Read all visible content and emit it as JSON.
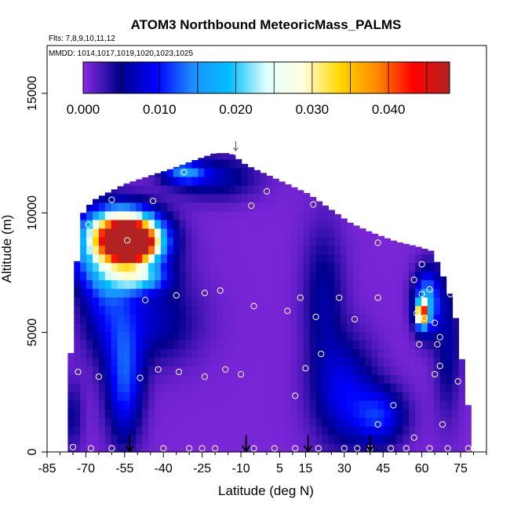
{
  "chart_data": {
    "type": "heatmap",
    "title": "ATOM3 Northbound MeteoricMass_PALMS",
    "subtitle_flights": "Flts: 7,8,9,10,11,12",
    "subtitle_dates": "MMDD: 1014,1017,1019,1020,1023,1025",
    "xlabel": "Latitude (deg N)",
    "ylabel": "Altitude (m)",
    "xlim": [
      -85,
      85
    ],
    "ylim": [
      0,
      17000
    ],
    "x_ticks": [
      -85,
      -70,
      -55,
      -40,
      -25,
      -10,
      5,
      15,
      30,
      45,
      60,
      75
    ],
    "y_ticks": [
      0,
      5000,
      10000,
      15000
    ],
    "colorbar": {
      "range": [
        0,
        0.048
      ],
      "tick_values": [
        0.0,
        0.01,
        0.02,
        0.03,
        0.04
      ],
      "tick_labels": [
        "0.000",
        "0.010",
        "0.020",
        "0.030",
        "0.040"
      ],
      "colors": [
        "#8A2BE2",
        "#00008B",
        "#0000FF",
        "#1E90FF",
        "#00BFFF",
        "#E0FFFF",
        "#FFFFE0",
        "#FFD700",
        "#FF8C00",
        "#FF0000",
        "#B22222"
      ]
    },
    "envelope": [
      [
        -76,
        0,
        3800
      ],
      [
        -74,
        0,
        7200
      ],
      [
        -72,
        0,
        9800
      ],
      [
        -70,
        0,
        10200
      ],
      [
        -66,
        0,
        10600
      ],
      [
        -55,
        0,
        11200
      ],
      [
        -44,
        0,
        11600
      ],
      [
        -38,
        0,
        11800
      ],
      [
        -28,
        0,
        12200
      ],
      [
        -20,
        0,
        12500
      ],
      [
        -14,
        0,
        12500
      ],
      [
        -8,
        0,
        12000
      ],
      [
        0,
        0,
        11600
      ],
      [
        8,
        0,
        11200
      ],
      [
        16,
        0,
        10800
      ],
      [
        24,
        0,
        10200
      ],
      [
        32,
        0,
        9600
      ],
      [
        40,
        0,
        9200
      ],
      [
        50,
        0,
        8800
      ],
      [
        58,
        0,
        8600
      ],
      [
        64,
        0,
        8400
      ],
      [
        68,
        0,
        7400
      ],
      [
        72,
        0,
        6200
      ],
      [
        74,
        0,
        5000
      ],
      [
        76,
        0,
        3400
      ],
      [
        78,
        0,
        1800
      ],
      [
        80,
        0,
        300
      ]
    ],
    "features": [
      {
        "lat": -52,
        "alt": 8700,
        "dlat": 9,
        "dalt": 700,
        "value": 0.044
      },
      {
        "lat": -55,
        "alt": 9200,
        "dlat": 12,
        "dalt": 900,
        "value": 0.032
      },
      {
        "lat": -58,
        "alt": 8500,
        "dlat": 17,
        "dalt": 1500,
        "value": 0.02
      },
      {
        "lat": -50,
        "alt": 7300,
        "dlat": 10,
        "dalt": 500,
        "value": 0.014
      },
      {
        "lat": -32,
        "alt": 11700,
        "dlat": 8,
        "dalt": 450,
        "value": 0.012
      },
      {
        "lat": 60,
        "alt": 5800,
        "dlat": 2.2,
        "dalt": 500,
        "value": 0.036
      },
      {
        "lat": 62,
        "alt": 6300,
        "dlat": 5,
        "dalt": 1300,
        "value": 0.016
      },
      {
        "lat": -55,
        "alt": 3000,
        "dlat": 7,
        "dalt": 2500,
        "value": 0.011
      },
      {
        "lat": -63,
        "alt": 6800,
        "dlat": 9,
        "dalt": 2500,
        "value": 0.007
      },
      {
        "lat": -45,
        "alt": 5500,
        "dlat": 18,
        "dalt": 1800,
        "value": 0.006
      },
      {
        "lat": -20,
        "alt": 11500,
        "dlat": 16,
        "dalt": 900,
        "value": 0.006
      },
      {
        "lat": 30,
        "alt": 2500,
        "dlat": 12,
        "dalt": 2200,
        "value": 0.008
      },
      {
        "lat": 44,
        "alt": 1500,
        "dlat": 10,
        "dalt": 1200,
        "value": 0.009
      },
      {
        "lat": 22,
        "alt": 6500,
        "dlat": 8,
        "dalt": 3000,
        "value": 0.005
      },
      {
        "lat": 70,
        "alt": 4500,
        "dlat": 5,
        "dalt": 3000,
        "value": 0.005
      },
      {
        "lat": -75,
        "alt": 1500,
        "dlat": 4,
        "dalt": 1500,
        "value": 0.004
      }
    ],
    "samples": [
      [
        -60,
        10550
      ],
      [
        -69,
        9500
      ],
      [
        -54,
        8850
      ],
      [
        -44,
        10500
      ],
      [
        -32,
        11700
      ],
      [
        -12,
        12550
      ],
      [
        -6,
        10300
      ],
      [
        0,
        10900
      ],
      [
        18,
        10350
      ],
      [
        43,
        8750
      ],
      [
        60,
        7850
      ],
      [
        67,
        8450
      ],
      [
        -47,
        6350
      ],
      [
        -35,
        6550
      ],
      [
        -24,
        6650
      ],
      [
        -18,
        6750
      ],
      [
        -5,
        6100
      ],
      [
        8,
        5900
      ],
      [
        13,
        6450
      ],
      [
        19,
        5650
      ],
      [
        28,
        6450
      ],
      [
        34,
        5550
      ],
      [
        43,
        6450
      ],
      [
        57,
        7200
      ],
      [
        60,
        6600
      ],
      [
        63,
        6800
      ],
      [
        71,
        6600
      ],
      [
        58,
        5800
      ],
      [
        61,
        5600
      ],
      [
        65,
        5400
      ],
      [
        67,
        4800
      ],
      [
        59,
        4500
      ],
      [
        66,
        4500
      ],
      [
        67,
        3600
      ],
      [
        65,
        3250
      ],
      [
        -73,
        3350
      ],
      [
        -65,
        3150
      ],
      [
        -49,
        3100
      ],
      [
        -42,
        3450
      ],
      [
        -34,
        3350
      ],
      [
        -24,
        3150
      ],
      [
        -16,
        3450
      ],
      [
        -10,
        3250
      ],
      [
        11,
        2350
      ],
      [
        15,
        3500
      ],
      [
        21,
        4100
      ],
      [
        49,
        1950
      ],
      [
        43,
        1150
      ],
      [
        57,
        600
      ],
      [
        68,
        1150
      ],
      [
        74,
        2950
      ],
      [
        -75,
        200
      ],
      [
        -68,
        150
      ],
      [
        -60,
        150
      ],
      [
        -40,
        150
      ],
      [
        -30,
        150
      ],
      [
        -25,
        150
      ],
      [
        -20,
        150
      ],
      [
        -5,
        150
      ],
      [
        3,
        150
      ],
      [
        11,
        150
      ],
      [
        20,
        150
      ],
      [
        30,
        150
      ],
      [
        35,
        150
      ],
      [
        40,
        150
      ],
      [
        48,
        150
      ],
      [
        54,
        150
      ],
      [
        63,
        150
      ],
      [
        70,
        150
      ],
      [
        78,
        150
      ]
    ],
    "arrows": [
      -53,
      -8,
      16,
      40
    ],
    "arrow_top": [
      -12,
      13000
    ]
  }
}
